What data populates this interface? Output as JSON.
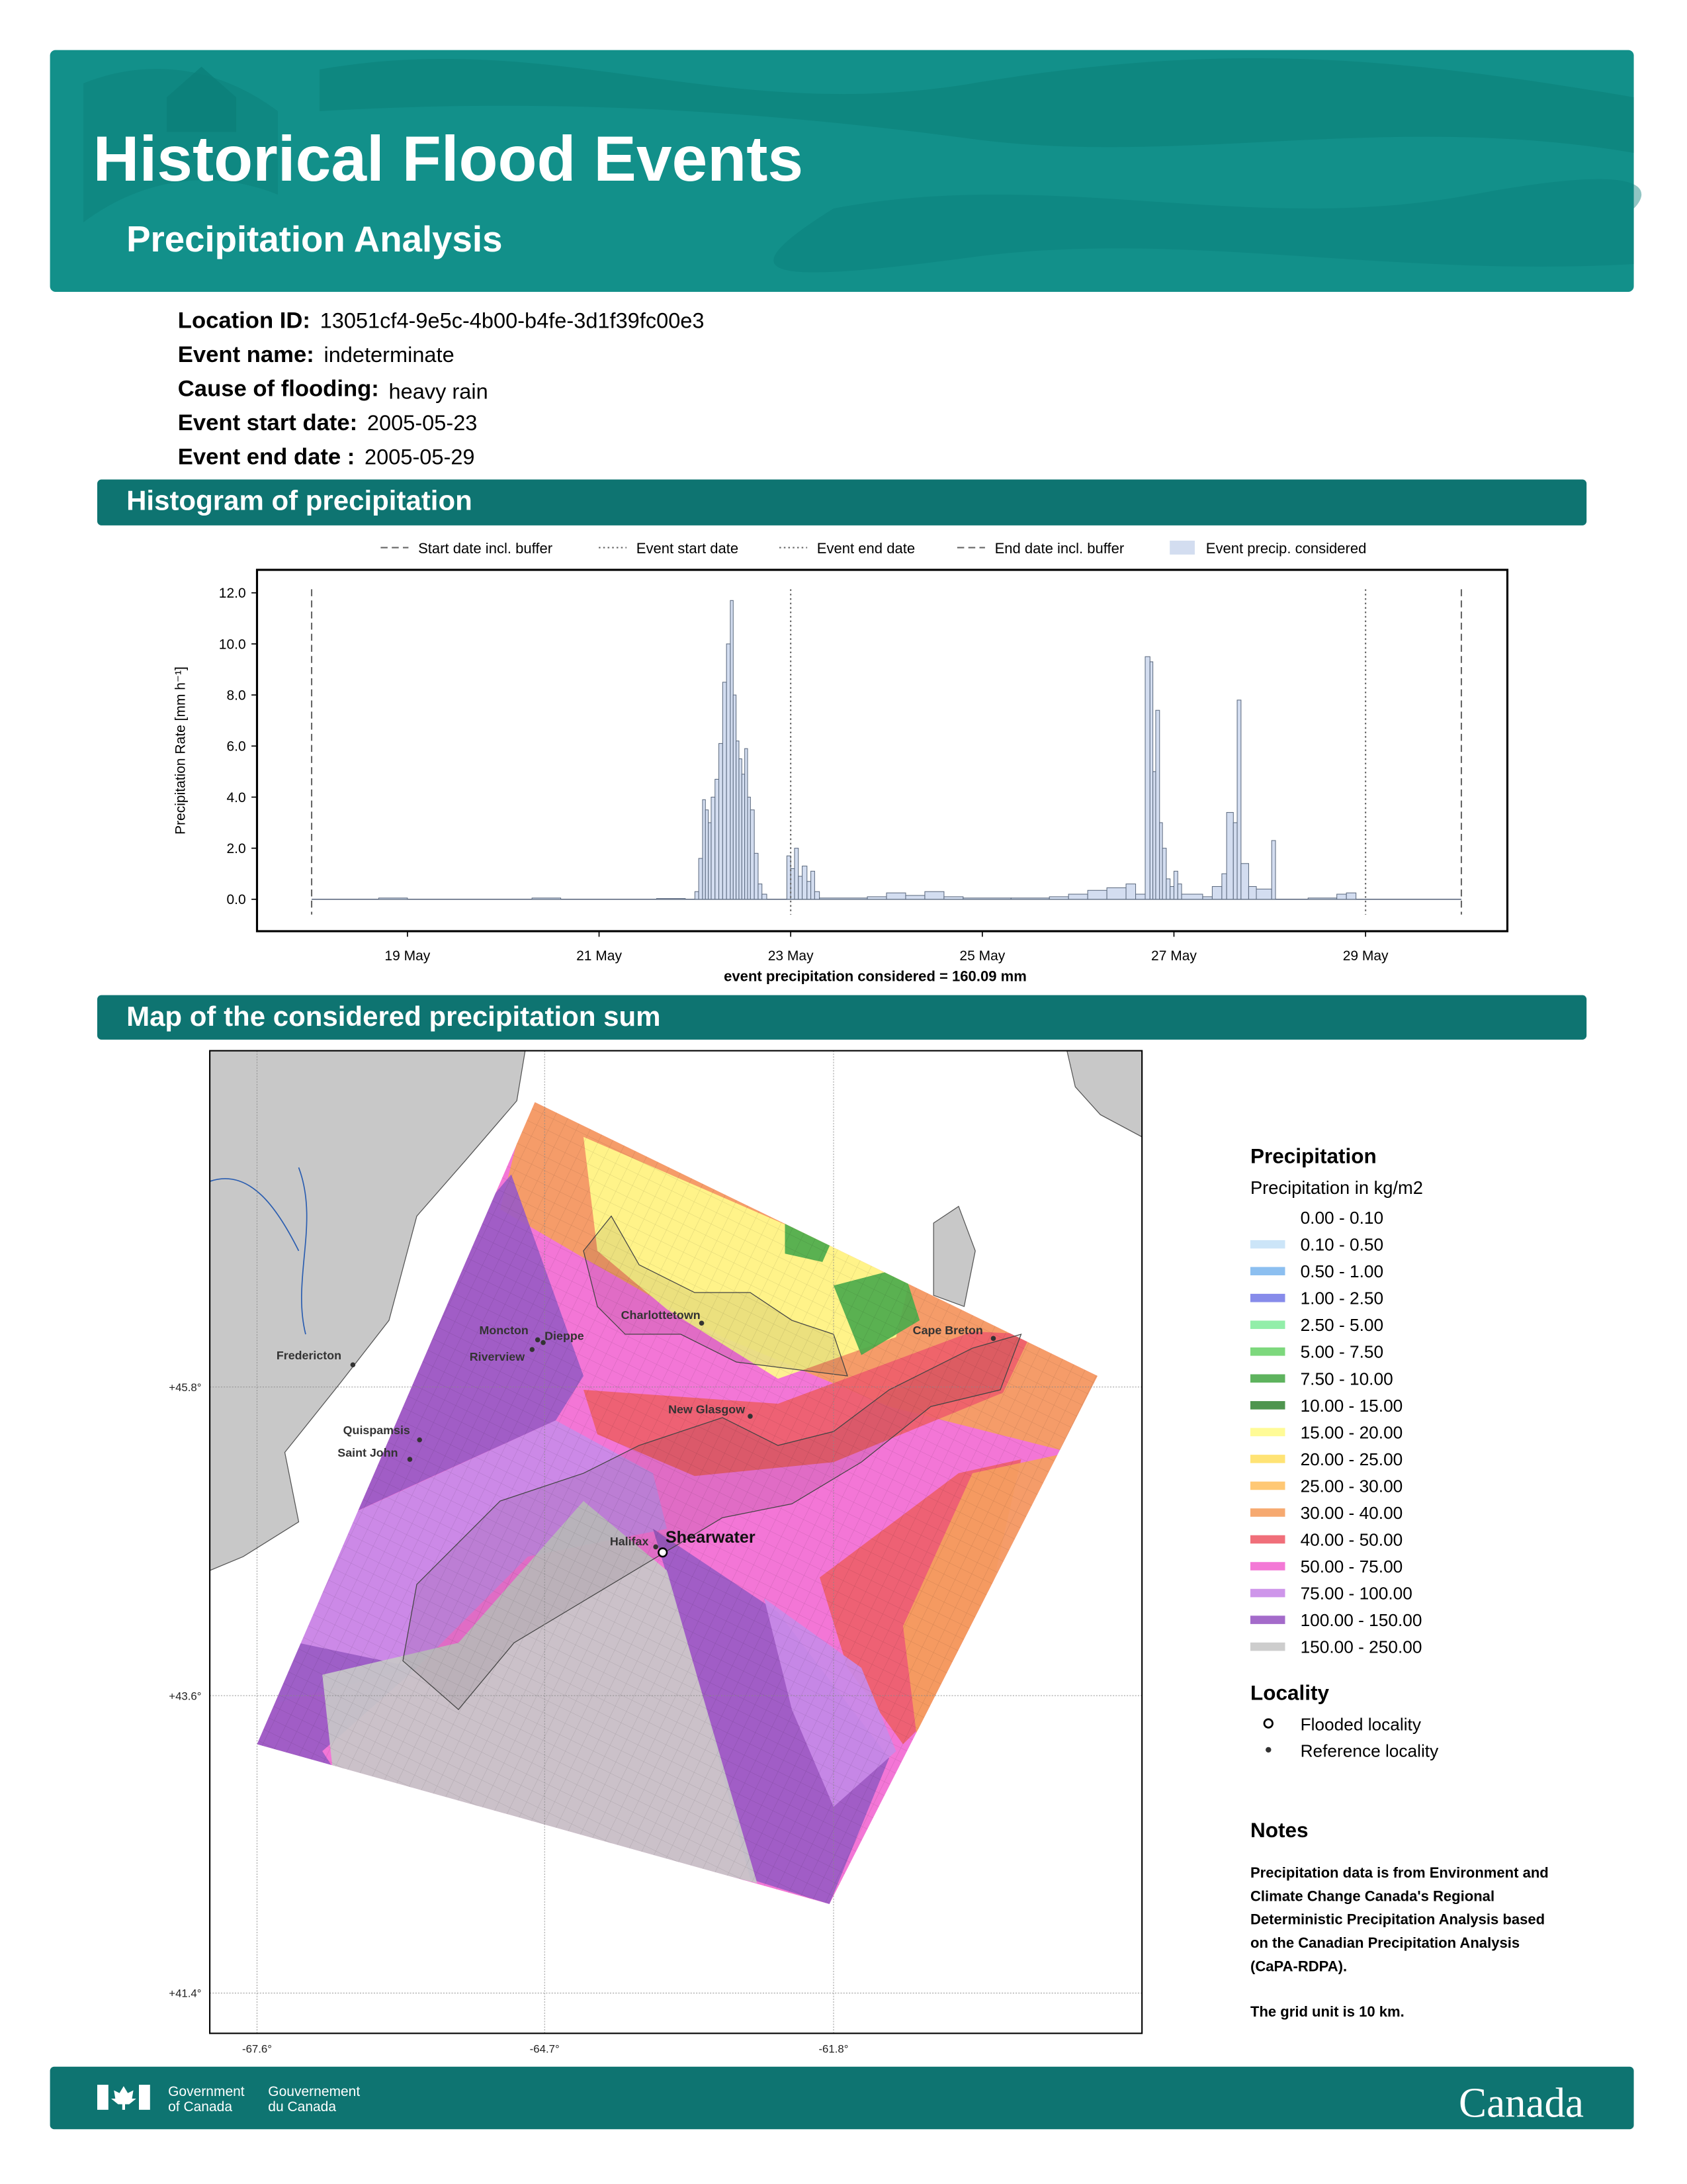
{
  "header": {
    "title": "Historical Flood Events",
    "subtitle": "Precipitation Analysis"
  },
  "info": [
    {
      "label": "Location ID:",
      "value": "13051cf4-9e5c-4b00-b4fe-3d1f39fc00e3"
    },
    {
      "label": "Event name:",
      "value": "indeterminate"
    },
    {
      "label": "Cause of flooding:",
      "value": "heavy rain"
    },
    {
      "label": "Event start date:",
      "value": "2005-05-23"
    },
    {
      "label": "Event end date :",
      "value": "2005-05-29"
    }
  ],
  "sections": {
    "histogram": "Histogram of precipitation",
    "map": "Map of the considered precipitation sum"
  },
  "chart_data": {
    "type": "bar",
    "ylabel": "Precipitation Rate [mm h⁻¹]",
    "xlabel": "event precipitation considered = 160.09 mm",
    "legend_label": "Event precip. considered",
    "color": "#d3ddf0",
    "edge_color": "#5d6b80",
    "xlim": [
      17.43,
      30.48
    ],
    "ylim": [
      -1.25,
      12.9
    ],
    "xticks": [
      {
        "value": 19,
        "label": "19 May"
      },
      {
        "value": 21,
        "label": "21 May"
      },
      {
        "value": 23,
        "label": "23 May"
      },
      {
        "value": 25,
        "label": "25 May"
      },
      {
        "value": 27,
        "label": "27 May"
      },
      {
        "value": 29,
        "label": "29 May"
      }
    ],
    "yticks": [
      {
        "value": 0,
        "label": "0.0"
      },
      {
        "value": 2,
        "label": "2.0"
      },
      {
        "value": 4,
        "label": "4.0"
      },
      {
        "value": 6,
        "label": "6.0"
      },
      {
        "value": 8,
        "label": "8.0"
      },
      {
        "value": 10,
        "label": "10.0"
      },
      {
        "value": 12,
        "label": "12.0"
      }
    ],
    "lines": [
      {
        "name": "Start date incl. buffer",
        "x": 18.0,
        "style": "dashed"
      },
      {
        "name": "Event start date",
        "x": 23.0,
        "style": "dotted"
      },
      {
        "name": "Event end date",
        "x": 29.0,
        "style": "dotted"
      },
      {
        "name": "End date incl. buffer",
        "x": 30.0,
        "style": "dashed"
      }
    ],
    "x": [
      18.0,
      18.7,
      19.0,
      20.3,
      20.6,
      21.6,
      21.9,
      22.0,
      22.04,
      22.08,
      22.11,
      22.14,
      22.17,
      22.21,
      22.25,
      22.29,
      22.33,
      22.37,
      22.4,
      22.43,
      22.46,
      22.49,
      22.52,
      22.55,
      22.58,
      22.62,
      22.66,
      22.7,
      22.75,
      22.96,
      23.0,
      23.04,
      23.08,
      23.12,
      23.17,
      23.21,
      23.25,
      23.3,
      23.8,
      24.0,
      24.2,
      24.4,
      24.6,
      24.8,
      25.3,
      25.7,
      25.9,
      26.1,
      26.3,
      26.5,
      26.6,
      26.7,
      26.75,
      26.78,
      26.81,
      26.85,
      26.88,
      26.92,
      26.96,
      27.0,
      27.04,
      27.08,
      27.3,
      27.4,
      27.5,
      27.55,
      27.62,
      27.66,
      27.7,
      27.78,
      27.86,
      28.02,
      28.06,
      28.4,
      28.7,
      28.8,
      28.9,
      30.0
    ],
    "values": [
      0,
      0.05,
      0,
      0.05,
      0,
      0.03,
      0,
      0.3,
      1.6,
      3.9,
      3.5,
      3.0,
      4.0,
      4.7,
      6.1,
      8.5,
      10.0,
      11.7,
      8.0,
      6.2,
      5.5,
      4.9,
      5.9,
      4.0,
      3.5,
      1.8,
      0.6,
      0.2,
      0,
      1.7,
      1.2,
      2.0,
      0.9,
      1.3,
      0.7,
      1.1,
      0.3,
      0.05,
      0.1,
      0.25,
      0.15,
      0.3,
      0.1,
      0.05,
      0.05,
      0.1,
      0.2,
      0.35,
      0.45,
      0.6,
      0.2,
      9.5,
      9.3,
      5.0,
      7.4,
      3.0,
      2.0,
      0.8,
      0.5,
      1.1,
      0.6,
      0.2,
      0.1,
      0.5,
      1.0,
      3.4,
      3.0,
      7.8,
      1.4,
      0.5,
      0.4,
      2.3,
      0,
      0.05,
      0.2,
      0.25,
      0,
      0
    ]
  },
  "map": {
    "lat_ticks": [
      "+45.8°",
      "+43.6°",
      "+41.4°"
    ],
    "lon_ticks": [
      "-67.6°",
      "-64.7°",
      "-61.8°"
    ],
    "localities": [
      {
        "name": "Moncton"
      },
      {
        "name": "Dieppe"
      },
      {
        "name": "Riverview"
      },
      {
        "name": "Charlottetown"
      },
      {
        "name": "Cape Breton"
      },
      {
        "name": "Fredericton"
      },
      {
        "name": "New Glasgow"
      },
      {
        "name": "Quispamsis"
      },
      {
        "name": "Saint John"
      },
      {
        "name": "Halifax"
      },
      {
        "name": "Shearwater"
      }
    ]
  },
  "legend": {
    "title": "Precipitation",
    "subtitle": "Precipitation in kg/m2",
    "classes": [
      {
        "label": "0.00 - 0.10",
        "color": "#ffffff"
      },
      {
        "label": "0.10 - 0.50",
        "color": "#c6e2f7"
      },
      {
        "label": "0.50 - 1.00",
        "color": "#7fb8ee"
      },
      {
        "label": "1.00 - 2.50",
        "color": "#7a7fe8"
      },
      {
        "label": "2.50 - 5.00",
        "color": "#86eca0"
      },
      {
        "label": "5.00 - 7.50",
        "color": "#6fd46f"
      },
      {
        "label": "7.50 - 10.00",
        "color": "#4cab4c"
      },
      {
        "label": "10.00 - 15.00",
        "color": "#3c8a3c"
      },
      {
        "label": "15.00 - 20.00",
        "color": "#fffb8c"
      },
      {
        "label": "20.00 - 25.00",
        "color": "#ffe066"
      },
      {
        "label": "25.00 - 30.00",
        "color": "#ffc266"
      },
      {
        "label": "30.00 - 40.00",
        "color": "#f5a060"
      },
      {
        "label": "40.00 - 50.00",
        "color": "#ee5f6b"
      },
      {
        "label": "50.00 - 75.00",
        "color": "#f26ad2"
      },
      {
        "label": "75.00 - 100.00",
        "color": "#c98be8"
      },
      {
        "label": "100.00 - 150.00",
        "color": "#9a5bc4"
      },
      {
        "label": "150.00 - 250.00",
        "color": "#c8c8c8"
      }
    ],
    "locality_title": "Locality",
    "flooded": "Flooded locality",
    "reference": "Reference locality"
  },
  "notes": {
    "title": "Notes",
    "paragraph1": [
      "Precipitation data is from Environment and",
      "Climate Change Canada's Regional",
      "Deterministic Precipitation Analysis based",
      "on the Canadian Precipitation Analysis",
      "(CaPA-RDPA)."
    ],
    "paragraph2": "The grid unit is 10 km."
  },
  "footer": {
    "en": [
      "Government",
      "of Canada"
    ],
    "fr": [
      "Gouvernement",
      "du Canada"
    ],
    "wordmark": "Canada"
  }
}
